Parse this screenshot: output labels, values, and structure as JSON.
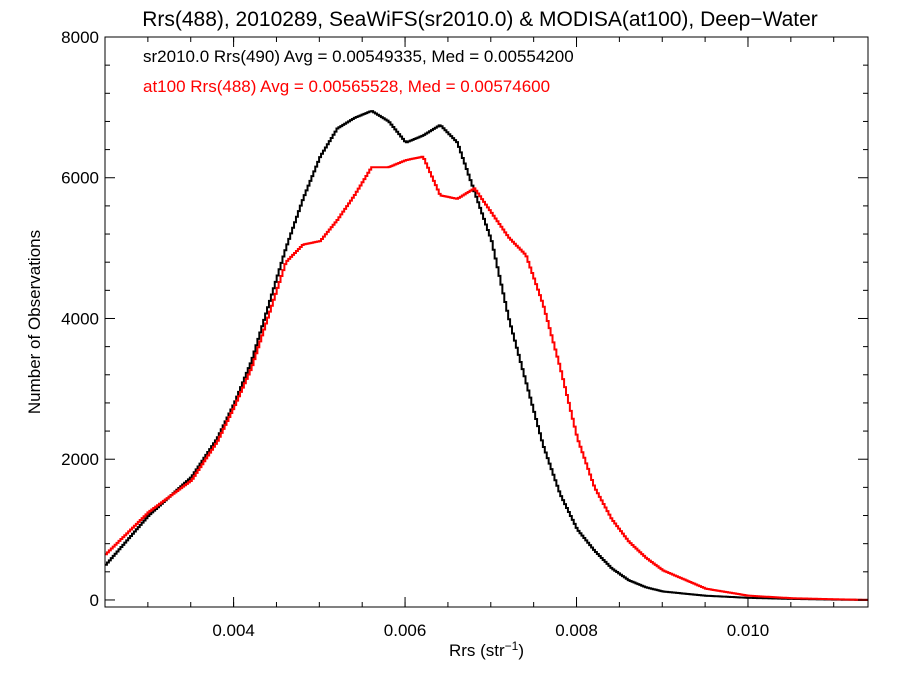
{
  "chart_data": {
    "type": "line",
    "title": "Rrs(488), 2010289, SeaWiFS(sr2010.0) & MODISA(at100), Deep−Water",
    "xlabel": "Rrs (str",
    "xlabel_superscript": "−1",
    "xlabel_close": ")",
    "ylabel": "Number of Observations",
    "xlim": [
      0.0025,
      0.0114
    ],
    "ylim": [
      -100,
      8000
    ],
    "x_ticks": [
      0.004,
      0.006,
      0.008,
      0.01
    ],
    "x_tick_labels": [
      "0.004",
      "0.006",
      "0.008",
      "0.010"
    ],
    "y_ticks": [
      0,
      2000,
      4000,
      6000,
      8000
    ],
    "y_tick_labels": [
      "0",
      "2000",
      "4000",
      "6000",
      "8000"
    ],
    "legend_position": "top-left",
    "grid": false,
    "series": [
      {
        "name": "sr2010.0 Rrs(490) Avg = 0.00549335, Med = 0.00554200",
        "color": "#000000",
        "style": "histogram-step",
        "x": [
          0.0025,
          0.003,
          0.0035,
          0.0038,
          0.004,
          0.0042,
          0.0044,
          0.0046,
          0.0048,
          0.005,
          0.0052,
          0.0054,
          0.0056,
          0.0058,
          0.006,
          0.0062,
          0.0064,
          0.0066,
          0.0068,
          0.007,
          0.0072,
          0.0074,
          0.0076,
          0.0078,
          0.008,
          0.0082,
          0.0084,
          0.0086,
          0.0088,
          0.009,
          0.0095,
          0.01,
          0.0105,
          0.011,
          0.0114
        ],
        "y": [
          500,
          1200,
          1750,
          2300,
          2800,
          3400,
          4200,
          5000,
          5700,
          6300,
          6700,
          6850,
          6950,
          6800,
          6500,
          6600,
          6750,
          6500,
          5800,
          5100,
          4000,
          3100,
          2200,
          1500,
          1000,
          700,
          450,
          280,
          180,
          120,
          60,
          30,
          15,
          5,
          0
        ]
      },
      {
        "name": "at100 Rrs(488) Avg = 0.00565528, Med = 0.00574600",
        "color": "#ff0000",
        "style": "histogram-step",
        "x": [
          0.0025,
          0.003,
          0.0035,
          0.0038,
          0.004,
          0.0042,
          0.0044,
          0.0046,
          0.0048,
          0.005,
          0.0052,
          0.0054,
          0.0056,
          0.0058,
          0.006,
          0.0062,
          0.0064,
          0.0066,
          0.0068,
          0.007,
          0.0072,
          0.0074,
          0.0076,
          0.0078,
          0.008,
          0.0082,
          0.0084,
          0.0086,
          0.0088,
          0.009,
          0.0095,
          0.01,
          0.0105,
          0.011,
          0.0114
        ],
        "y": [
          650,
          1250,
          1700,
          2250,
          2750,
          3300,
          4050,
          4800,
          5050,
          5100,
          5400,
          5750,
          6150,
          6150,
          6250,
          6300,
          5750,
          5700,
          5850,
          5500,
          5150,
          4900,
          4200,
          3300,
          2300,
          1600,
          1150,
          830,
          600,
          420,
          160,
          60,
          25,
          10,
          0
        ]
      }
    ]
  }
}
